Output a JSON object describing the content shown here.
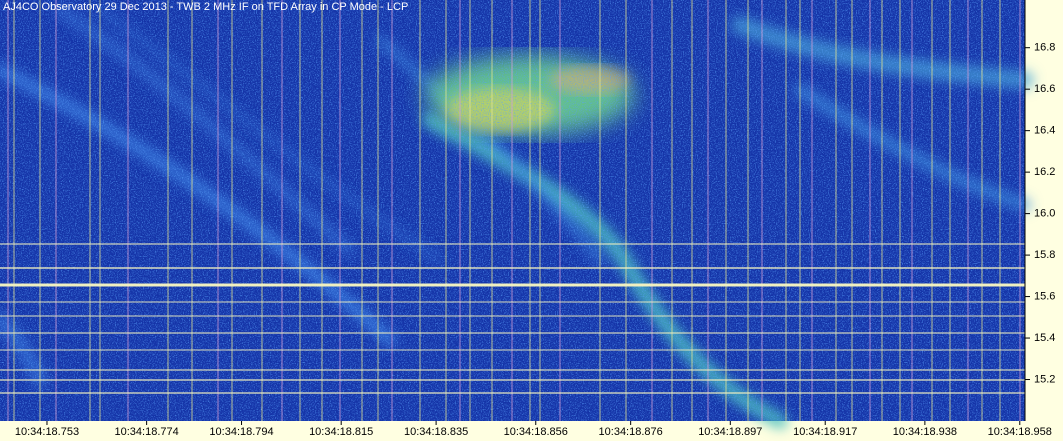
{
  "chart_data": {
    "type": "spectrogram",
    "title": "AJ4CO Observatory 29 Dec 2013 - TWB 2 MHz IF on TFD Array in CP Mode - LCP",
    "ylim": [
      15.0,
      17.03
    ],
    "yticks": [
      15.2,
      15.4,
      15.6,
      15.8,
      {
        "value": 16,
        "label": "16.0"
      },
      16.2,
      16.4,
      16.6,
      16.8
    ],
    "xlim": [
      18.7431,
      18.9591
    ],
    "xticks": [
      {
        "value": 18.753,
        "label": "10:34:18.753"
      },
      {
        "value": 18.774,
        "label": "10:34:18.774"
      },
      {
        "value": 18.794,
        "label": "10:34:18.794"
      },
      {
        "value": 18.815,
        "label": "10:34:18.815"
      },
      {
        "value": 18.835,
        "label": "10:34:18.835"
      },
      {
        "value": 18.856,
        "label": "10:34:18.856"
      },
      {
        "value": 18.876,
        "label": "10:34:18.876"
      },
      {
        "value": 18.897,
        "label": "10:34:18.897"
      },
      {
        "value": 18.917,
        "label": "10:34:18.917"
      },
      {
        "value": 18.938,
        "label": "10:34:18.938"
      },
      {
        "value": 18.958,
        "label": "10:34:18.958"
      }
    ]
  }
}
